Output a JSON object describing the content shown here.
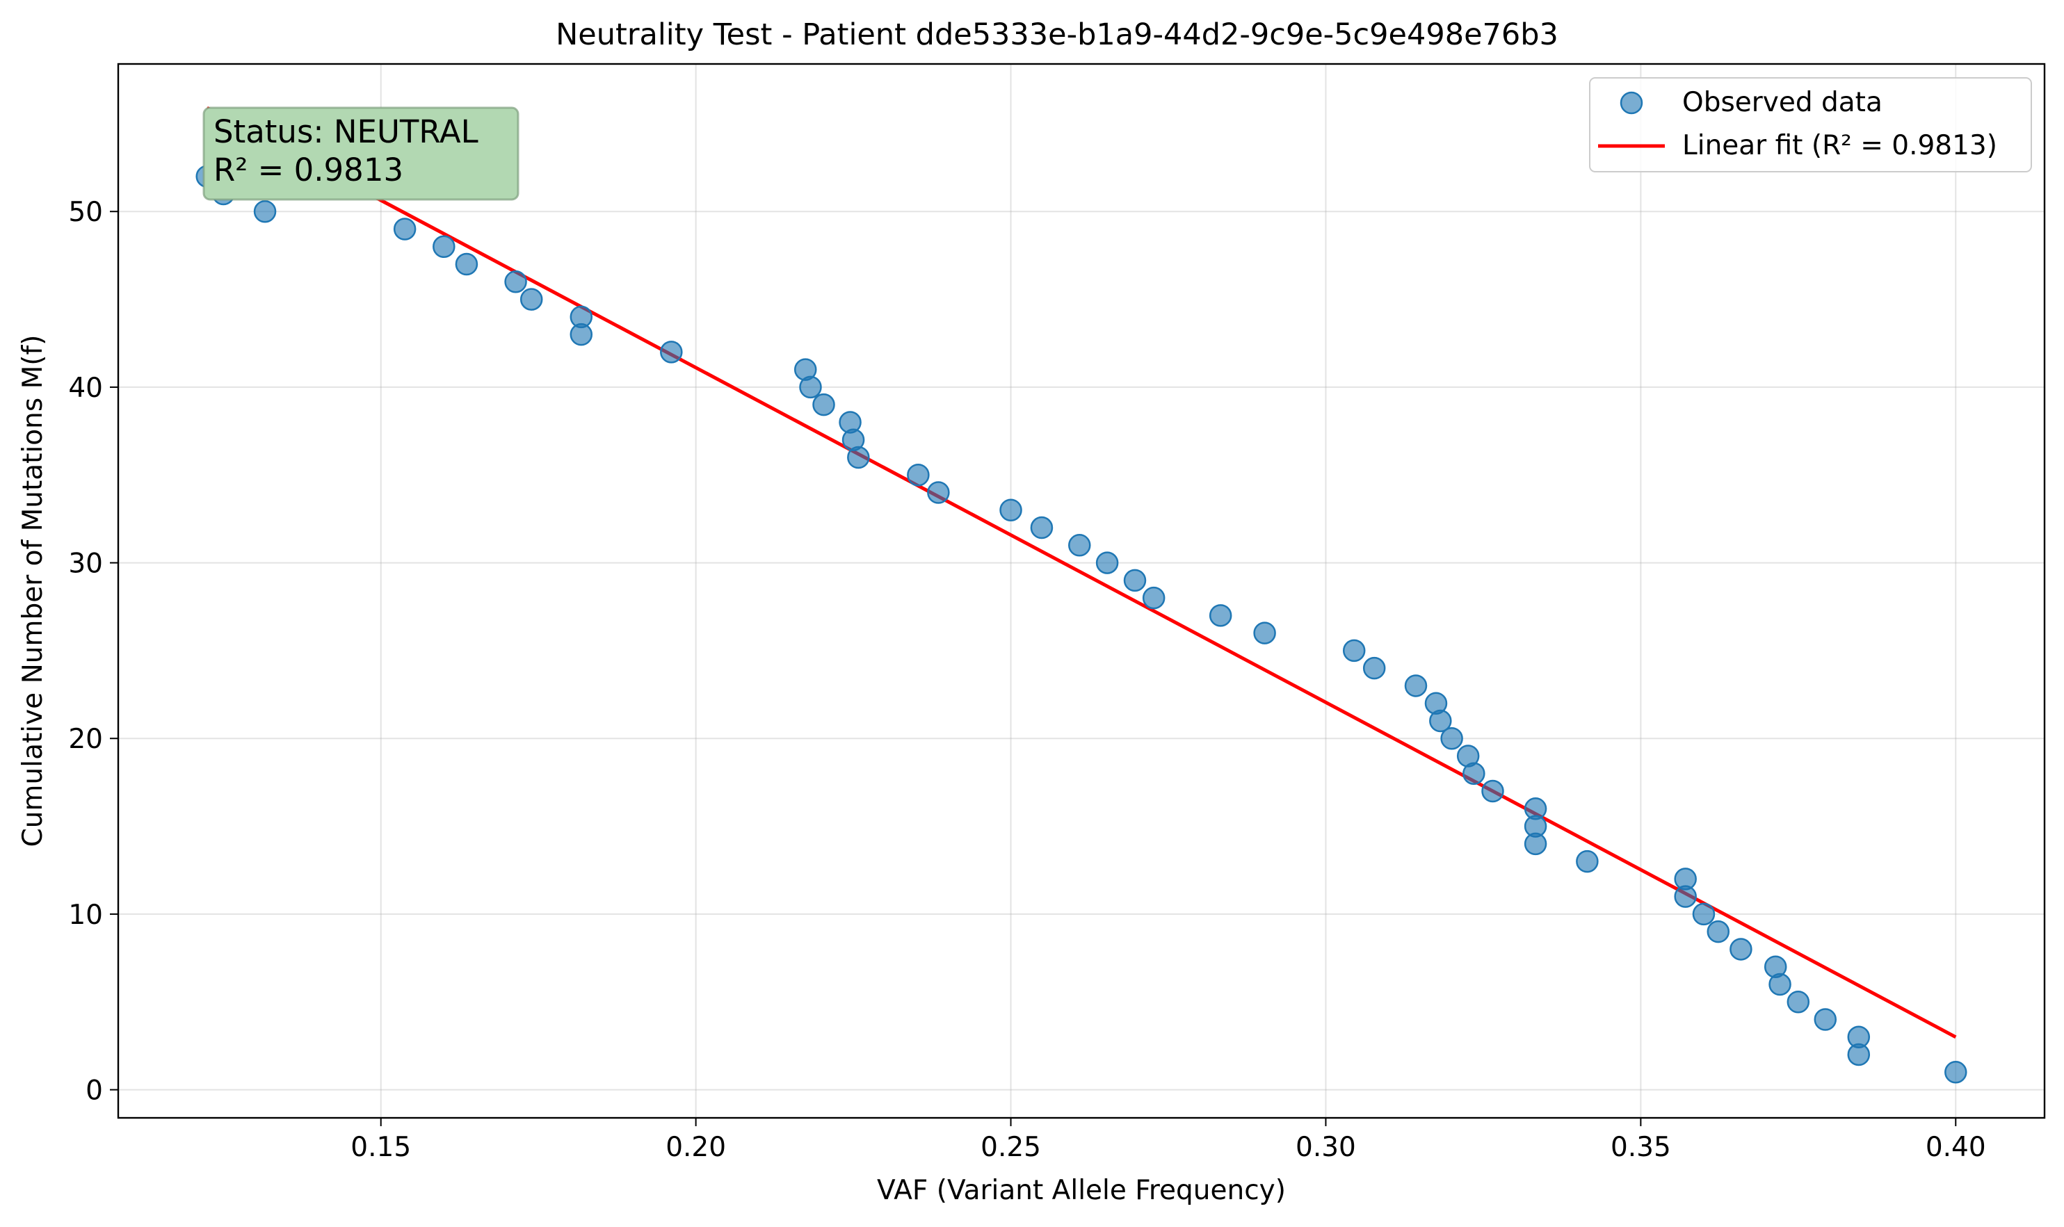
{
  "chart_data": {
    "type": "scatter",
    "title": "Neutrality Test - Patient dde5333e-b1a9-44d2-9c9e-5c9e498e76b3",
    "xlabel": "VAF (Variant Allele Frequency)",
    "ylabel": "Cumulative Number of Mutations M(f)",
    "xlim": [
      0.1083,
      0.4141
    ],
    "ylim": [
      -1.6,
      58.4
    ],
    "x_ticks": [
      0.15,
      0.2,
      0.25,
      0.3,
      0.35,
      0.4
    ],
    "x_tick_labels": [
      "0.15",
      "0.20",
      "0.25",
      "0.30",
      "0.35",
      "0.40"
    ],
    "y_ticks": [
      0,
      10,
      20,
      30,
      40,
      50
    ],
    "y_tick_labels": [
      "0",
      "10",
      "20",
      "30",
      "40",
      "50"
    ],
    "grid": true,
    "legend_position": "top-right",
    "series": [
      {
        "name": "Observed data",
        "kind": "scatter",
        "color": "#1f77b4",
        "points": [
          [
            0.1224,
            52
          ],
          [
            0.125,
            51
          ],
          [
            0.1316,
            50
          ],
          [
            0.1538,
            49
          ],
          [
            0.16,
            48
          ],
          [
            0.1636,
            47
          ],
          [
            0.1714,
            46
          ],
          [
            0.1739,
            45
          ],
          [
            0.1818,
            44
          ],
          [
            0.1818,
            43
          ],
          [
            0.1961,
            42
          ],
          [
            0.2174,
            41
          ],
          [
            0.2182,
            40
          ],
          [
            0.2203,
            39
          ],
          [
            0.2245,
            38
          ],
          [
            0.225,
            37
          ],
          [
            0.2258,
            36
          ],
          [
            0.2353,
            35
          ],
          [
            0.2385,
            34
          ],
          [
            0.25,
            33
          ],
          [
            0.2549,
            32
          ],
          [
            0.2609,
            31
          ],
          [
            0.2653,
            30
          ],
          [
            0.2697,
            29
          ],
          [
            0.2727,
            28
          ],
          [
            0.2833,
            27
          ],
          [
            0.2903,
            26
          ],
          [
            0.3045,
            25
          ],
          [
            0.3077,
            24
          ],
          [
            0.3143,
            23
          ],
          [
            0.3175,
            22
          ],
          [
            0.3182,
            21
          ],
          [
            0.32,
            20
          ],
          [
            0.3226,
            19
          ],
          [
            0.3235,
            18
          ],
          [
            0.3265,
            17
          ],
          [
            0.3333,
            16
          ],
          [
            0.3333,
            15
          ],
          [
            0.3333,
            14
          ],
          [
            0.3415,
            13
          ],
          [
            0.3571,
            12
          ],
          [
            0.3571,
            11
          ],
          [
            0.36,
            10
          ],
          [
            0.3623,
            9
          ],
          [
            0.3659,
            8
          ],
          [
            0.3714,
            7
          ],
          [
            0.3721,
            6
          ],
          [
            0.375,
            5
          ],
          [
            0.3793,
            4
          ],
          [
            0.3846,
            3
          ],
          [
            0.3846,
            2
          ],
          [
            0.4,
            1
          ]
        ]
      },
      {
        "name": "Linear fit (R² = 0.9813)",
        "kind": "line",
        "color": "#ff0000",
        "points": [
          [
            0.1224,
            55.9
          ],
          [
            0.4,
            3.0
          ]
        ]
      }
    ],
    "annotation": {
      "lines": [
        "Status: NEUTRAL",
        "R² = 0.9813"
      ],
      "background": "#b2d8b2"
    }
  }
}
